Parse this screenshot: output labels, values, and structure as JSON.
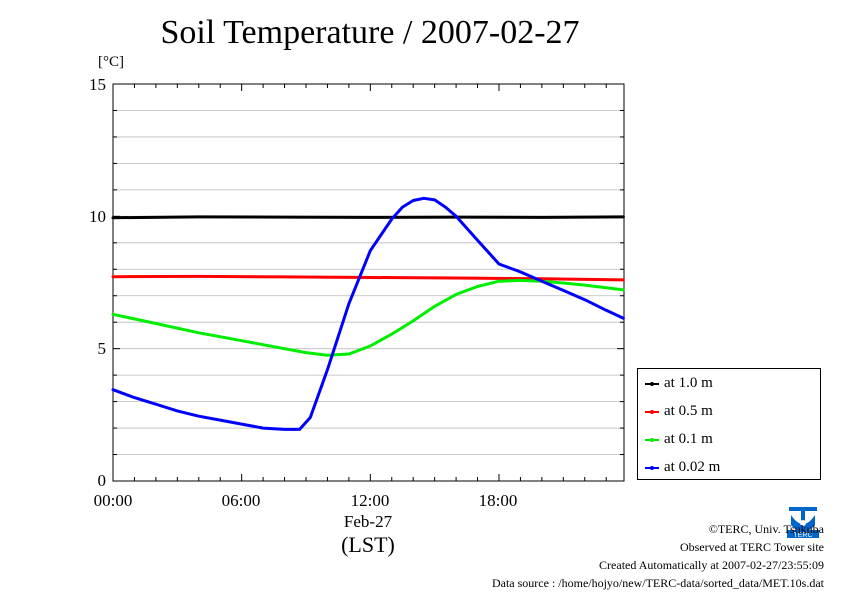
{
  "title": "Soil Temperature / 2007-02-27",
  "unit": "[°C]",
  "chart_data": {
    "type": "line",
    "title": "Soil Temperature / 2007-02-27",
    "ylabel": "[°C]",
    "xlabel": "(LST)",
    "x_date_label": "Feb-27",
    "xlim": [
      0,
      23.83
    ],
    "ylim": [
      0,
      15
    ],
    "x_ticks": [
      0,
      6,
      12,
      18
    ],
    "x_tick_labels": [
      "00:00",
      "06:00",
      "12:00",
      "18:00"
    ],
    "y_ticks": [
      0,
      5,
      10,
      15
    ],
    "y_tick_labels": [
      "0",
      "5",
      "10",
      "15"
    ],
    "grid": "horizontal minor gridlines",
    "legend_position": "right, outside plot",
    "series": [
      {
        "name": "at 1.0 m",
        "color": "#000000",
        "x": [
          0,
          4,
          8,
          12,
          16,
          20,
          23.8
        ],
        "y": [
          9.95,
          9.98,
          9.97,
          9.96,
          9.97,
          9.96,
          9.98
        ]
      },
      {
        "name": "at 0.5 m",
        "color": "#ff0000",
        "x": [
          0,
          4,
          8,
          12,
          16,
          20,
          23.8
        ],
        "y": [
          7.72,
          7.73,
          7.71,
          7.69,
          7.67,
          7.64,
          7.6
        ]
      },
      {
        "name": "at 0.1 m",
        "color": "#00ee00",
        "x": [
          0,
          2,
          4,
          6,
          8,
          9,
          10,
          11,
          12,
          13,
          14,
          15,
          16,
          17,
          18,
          19,
          20,
          21,
          22,
          23,
          23.8
        ],
        "y": [
          6.3,
          5.95,
          5.6,
          5.3,
          5.0,
          4.85,
          4.75,
          4.8,
          5.1,
          5.55,
          6.05,
          6.6,
          7.05,
          7.35,
          7.55,
          7.58,
          7.55,
          7.48,
          7.4,
          7.3,
          7.22
        ]
      },
      {
        "name": "at 0.02 m",
        "color": "#0000ff",
        "x": [
          0,
          1,
          2,
          3,
          4,
          5,
          6,
          7,
          8,
          8.7,
          9.2,
          10,
          11,
          12,
          13,
          13.5,
          14,
          14.5,
          15,
          15.5,
          16,
          17,
          18,
          19,
          20,
          21,
          22,
          23,
          23.8
        ],
        "y": [
          3.45,
          3.15,
          2.9,
          2.65,
          2.45,
          2.3,
          2.15,
          2.0,
          1.95,
          1.95,
          2.4,
          4.2,
          6.7,
          8.7,
          9.9,
          10.35,
          10.6,
          10.68,
          10.62,
          10.35,
          10.0,
          9.1,
          8.2,
          7.9,
          7.55,
          7.2,
          6.85,
          6.45,
          6.15
        ]
      }
    ]
  },
  "legend": {
    "items": [
      {
        "label": "at 1.0 m",
        "color": "#000000"
      },
      {
        "label": "at 0.5 m",
        "color": "#ff0000"
      },
      {
        "label": "at 0.1 m",
        "color": "#00ee00"
      },
      {
        "label": "at 0.02 m",
        "color": "#0000ff"
      }
    ]
  },
  "footer": {
    "copyright": "©TERC, Univ. Tsukuba",
    "site": "Observed at TERC Tower site",
    "created": "Created Automatically at 2007-02-27/23:55:09",
    "source": "Data source : /home/hojyo/new/TERC-data/sorted_data/MET.10s.dat"
  },
  "logo": {
    "text": "TERC",
    "color": "#0066cc"
  }
}
